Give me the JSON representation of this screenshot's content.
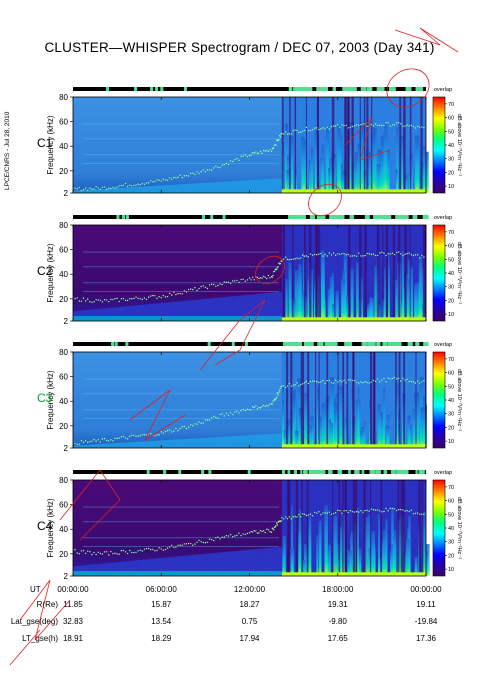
{
  "title": "CLUSTER—WHISPER Spectrogram / DEC 07, 2003 (Day 341)",
  "credit": "LPCE/CNRS - Jul 28, 2010",
  "colorbar": {
    "label": "dB above 10⁻⁷V²m⁻²Hz⁻¹",
    "ticks": [
      "70",
      "60",
      "50",
      "40",
      "30",
      "20",
      "10"
    ],
    "range": [
      5,
      75
    ],
    "colors": [
      "#ff0000",
      "#ff7f00",
      "#ffff00",
      "#7fff00",
      "#00ff7f",
      "#00ffff",
      "#007fff",
      "#0000ff",
      "#2a00a8",
      "#3c0064"
    ]
  },
  "status_label": "overlap",
  "chart_data": {
    "type": "heatmap",
    "title": "CLUSTER—WHISPER Spectrogram / DEC 07, 2003 (Day 341)",
    "xlabel": "UT",
    "ylabel": "Frequency (kHz)",
    "x_ticks": [
      "00:00:00",
      "06:00:00",
      "12:00:00",
      "18:00:00",
      "00:00:00"
    ],
    "xlim_hours": [
      0,
      24
    ],
    "ylim": [
      2,
      80
    ],
    "y_ticks": [
      "2",
      "20",
      "40",
      "60",
      "80"
    ],
    "panels": [
      {
        "name": "C1",
        "label_color": "#000000",
        "background": "#3c8fe0",
        "plasma_line": {
          "x": [
            0,
            2,
            4,
            6,
            8,
            10,
            12,
            13.5,
            14.2,
            16,
            18,
            20,
            22,
            24
          ],
          "y": [
            5,
            6,
            9,
            12,
            17,
            24,
            33,
            37,
            50,
            54,
            56,
            57,
            58,
            54
          ]
        }
      },
      {
        "name": "C2",
        "label_color": "#000000",
        "background": "#3c0064",
        "plasma_line": {
          "x": [
            0,
            2,
            4,
            6,
            8,
            10,
            12,
            13.5,
            14.2,
            16,
            18,
            20,
            22,
            24
          ],
          "y": [
            20,
            18,
            20,
            22,
            27,
            32,
            36,
            38,
            52,
            55,
            56,
            56,
            57,
            54
          ]
        }
      },
      {
        "name": "C3",
        "label_color": "#0a9e2e",
        "background": "#3c8fe0",
        "plasma_line": {
          "x": [
            0,
            2,
            4,
            6,
            8,
            10,
            12,
            13.5,
            14.2,
            16,
            18,
            20,
            22,
            24
          ],
          "y": [
            6,
            8,
            11,
            14,
            20,
            28,
            34,
            37,
            52,
            55,
            56,
            56,
            58,
            55
          ]
        }
      },
      {
        "name": "C4",
        "label_color": "#000000",
        "background": "#3c0064",
        "plasma_line": {
          "x": [
            0,
            2,
            4,
            6,
            8,
            10,
            12,
            13.5,
            14.2,
            16,
            18,
            20,
            22,
            24
          ],
          "y": [
            22,
            20,
            22,
            24,
            28,
            33,
            37,
            39,
            48,
            52,
            54,
            55,
            56,
            52
          ]
        }
      }
    ]
  },
  "orbit": {
    "rows": [
      {
        "label": "R(Re)",
        "values": [
          "11.85",
          "15.87",
          "18.27",
          "19.31",
          "19.11"
        ]
      },
      {
        "label": "Lat_gse(deg)",
        "values": [
          "32.83",
          "13.54",
          "0.75",
          "-9.80",
          "-19.84"
        ]
      },
      {
        "label": "LT_gse(h)",
        "values": [
          "18.91",
          "18.29",
          "17.94",
          "17.65",
          "17.36"
        ]
      }
    ]
  }
}
